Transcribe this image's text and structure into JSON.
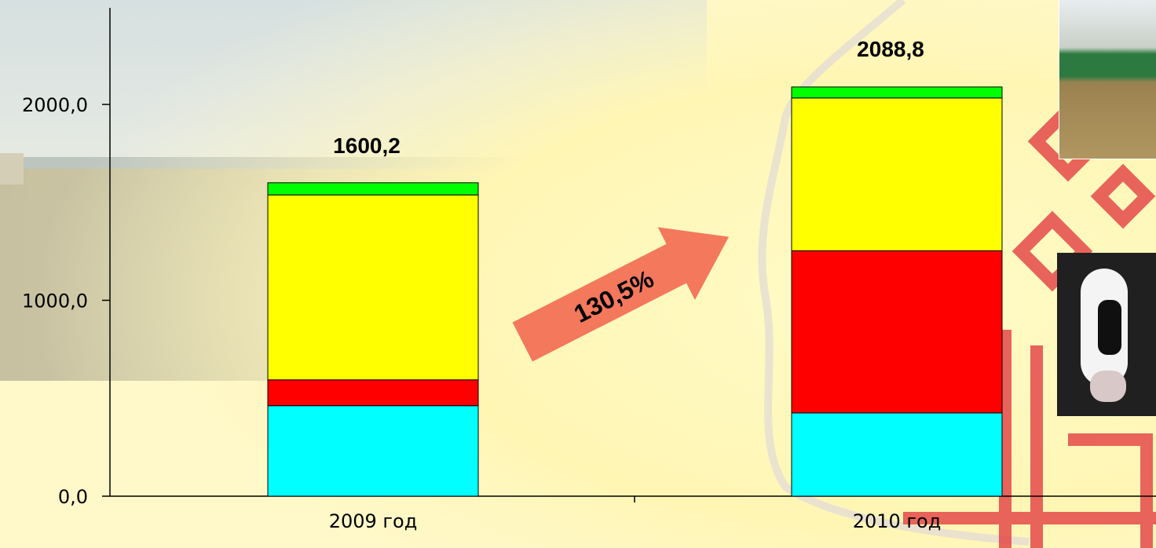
{
  "chart_data": {
    "type": "bar",
    "stacked": true,
    "categories": [
      "2009 год",
      "2010 год"
    ],
    "series": [
      {
        "color": "#00ffff",
        "values": [
          462,
          425
        ]
      },
      {
        "color": "#ff0000",
        "values": [
          132,
          828
        ]
      },
      {
        "color": "#ffff00",
        "values": [
          944,
          780
        ]
      },
      {
        "color": "#00ff00",
        "values": [
          62,
          56
        ]
      }
    ],
    "totals": [
      "1600,2",
      "2088,8"
    ],
    "y_ticks": [
      {
        "value": 0,
        "label": "0,0"
      },
      {
        "value": 1000,
        "label": "1000,0"
      },
      {
        "value": 2000,
        "label": "2000,0"
      }
    ],
    "ylim": [
      0,
      2500
    ],
    "grid": false,
    "legend": "none"
  },
  "growth_label": "130,5%",
  "colors": {
    "background": "#fff9c6",
    "ornament": "#e03838",
    "arrow": "#f4785c",
    "axis": "#000000"
  }
}
